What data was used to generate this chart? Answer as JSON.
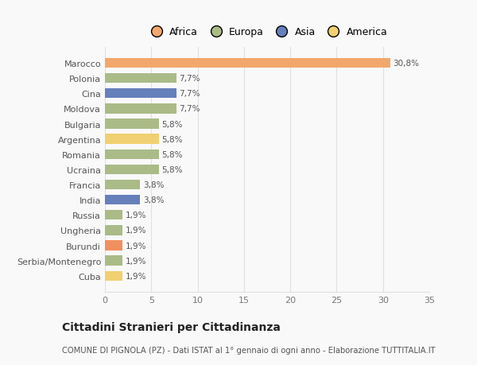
{
  "categories": [
    "Marocco",
    "Polonia",
    "Cina",
    "Moldova",
    "Bulgaria",
    "Argentina",
    "Romania",
    "Ucraina",
    "Francia",
    "India",
    "Russia",
    "Ungheria",
    "Burundi",
    "Serbia/Montenegro",
    "Cuba"
  ],
  "values": [
    30.8,
    7.7,
    7.7,
    7.7,
    5.8,
    5.8,
    5.8,
    5.8,
    3.8,
    3.8,
    1.9,
    1.9,
    1.9,
    1.9,
    1.9
  ],
  "labels": [
    "30,8%",
    "7,7%",
    "7,7%",
    "7,7%",
    "5,8%",
    "5,8%",
    "5,8%",
    "5,8%",
    "3,8%",
    "3,8%",
    "1,9%",
    "1,9%",
    "1,9%",
    "1,9%",
    "1,9%"
  ],
  "colors": [
    "#F2A86C",
    "#AABB88",
    "#6680BB",
    "#AABB88",
    "#AABB88",
    "#F0D070",
    "#AABB88",
    "#AABB88",
    "#AABB88",
    "#6680BB",
    "#AABB88",
    "#AABB88",
    "#F09060",
    "#AABB88",
    "#F0D070"
  ],
  "legend": [
    {
      "label": "Africa",
      "color": "#F2A86C"
    },
    {
      "label": "Europa",
      "color": "#AABB88"
    },
    {
      "label": "Asia",
      "color": "#6680BB"
    },
    {
      "label": "America",
      "color": "#F0D070"
    }
  ],
  "xlim": [
    0,
    35
  ],
  "xticks": [
    0,
    5,
    10,
    15,
    20,
    25,
    30,
    35
  ],
  "title": "Cittadini Stranieri per Cittadinanza",
  "subtitle": "COMUNE DI PIGNOLA (PZ) - Dati ISTAT al 1° gennaio di ogni anno - Elaborazione TUTTITALIA.IT",
  "background_color": "#f9f9f9",
  "grid_color": "#e0e0e0"
}
